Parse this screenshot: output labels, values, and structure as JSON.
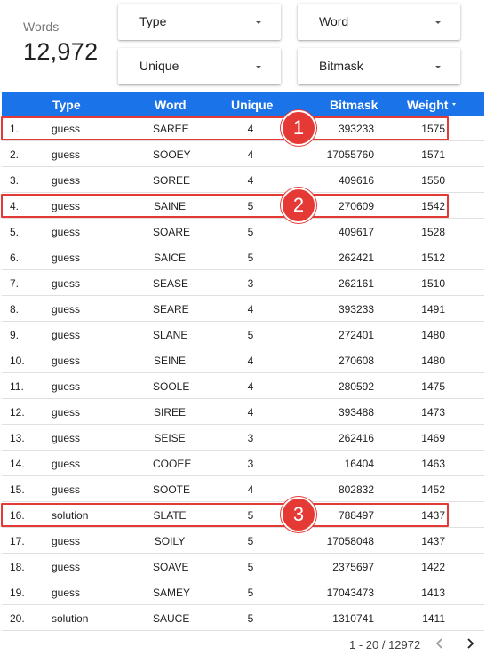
{
  "scorecard": {
    "label": "Words",
    "value": "12,972"
  },
  "filters": {
    "type": "Type",
    "word": "Word",
    "unique": "Unique",
    "bitmask": "Bitmask"
  },
  "table": {
    "headers": {
      "type": "Type",
      "word": "Word",
      "unique": "Unique",
      "bitmask": "Bitmask",
      "weight": "Weight"
    },
    "header_color": "#1a73e8",
    "rows": [
      {
        "idx": "1.",
        "type": "guess",
        "word": "SAREE",
        "unique": "4",
        "bitmask": "393233",
        "weight": "1575"
      },
      {
        "idx": "2.",
        "type": "guess",
        "word": "SOOEY",
        "unique": "4",
        "bitmask": "17055760",
        "weight": "1571"
      },
      {
        "idx": "3.",
        "type": "guess",
        "word": "SOREE",
        "unique": "4",
        "bitmask": "409616",
        "weight": "1550"
      },
      {
        "idx": "4.",
        "type": "guess",
        "word": "SAINE",
        "unique": "5",
        "bitmask": "270609",
        "weight": "1542"
      },
      {
        "idx": "5.",
        "type": "guess",
        "word": "SOARE",
        "unique": "5",
        "bitmask": "409617",
        "weight": "1528"
      },
      {
        "idx": "6.",
        "type": "guess",
        "word": "SAICE",
        "unique": "5",
        "bitmask": "262421",
        "weight": "1512"
      },
      {
        "idx": "7.",
        "type": "guess",
        "word": "SEASE",
        "unique": "3",
        "bitmask": "262161",
        "weight": "1510"
      },
      {
        "idx": "8.",
        "type": "guess",
        "word": "SEARE",
        "unique": "4",
        "bitmask": "393233",
        "weight": "1491"
      },
      {
        "idx": "9.",
        "type": "guess",
        "word": "SLANE",
        "unique": "5",
        "bitmask": "272401",
        "weight": "1480"
      },
      {
        "idx": "10.",
        "type": "guess",
        "word": "SEINE",
        "unique": "4",
        "bitmask": "270608",
        "weight": "1480"
      },
      {
        "idx": "11.",
        "type": "guess",
        "word": "SOOLE",
        "unique": "4",
        "bitmask": "280592",
        "weight": "1475"
      },
      {
        "idx": "12.",
        "type": "guess",
        "word": "SIREE",
        "unique": "4",
        "bitmask": "393488",
        "weight": "1473"
      },
      {
        "idx": "13.",
        "type": "guess",
        "word": "SEISE",
        "unique": "3",
        "bitmask": "262416",
        "weight": "1469"
      },
      {
        "idx": "14.",
        "type": "guess",
        "word": "COOEE",
        "unique": "3",
        "bitmask": "16404",
        "weight": "1463"
      },
      {
        "idx": "15.",
        "type": "guess",
        "word": "SOOTE",
        "unique": "4",
        "bitmask": "802832",
        "weight": "1452"
      },
      {
        "idx": "16.",
        "type": "solution",
        "word": "SLATE",
        "unique": "5",
        "bitmask": "788497",
        "weight": "1437"
      },
      {
        "idx": "17.",
        "type": "guess",
        "word": "SOILY",
        "unique": "5",
        "bitmask": "17058048",
        "weight": "1437"
      },
      {
        "idx": "18.",
        "type": "guess",
        "word": "SOAVE",
        "unique": "5",
        "bitmask": "2375697",
        "weight": "1422"
      },
      {
        "idx": "19.",
        "type": "guess",
        "word": "SAMEY",
        "unique": "5",
        "bitmask": "17043473",
        "weight": "1413"
      },
      {
        "idx": "20.",
        "type": "solution",
        "word": "SAUCE",
        "unique": "5",
        "bitmask": "1310741",
        "weight": "1411"
      }
    ]
  },
  "highlights": [
    {
      "row": 1,
      "badge": "1"
    },
    {
      "row": 4,
      "badge": "2"
    },
    {
      "row": 16,
      "badge": "3"
    }
  ],
  "highlight_color": "#e53935",
  "pagination": {
    "text": "1 - 20 / 12972",
    "prev_icon": "chevron-left-icon",
    "next_icon": "chevron-right-icon"
  }
}
